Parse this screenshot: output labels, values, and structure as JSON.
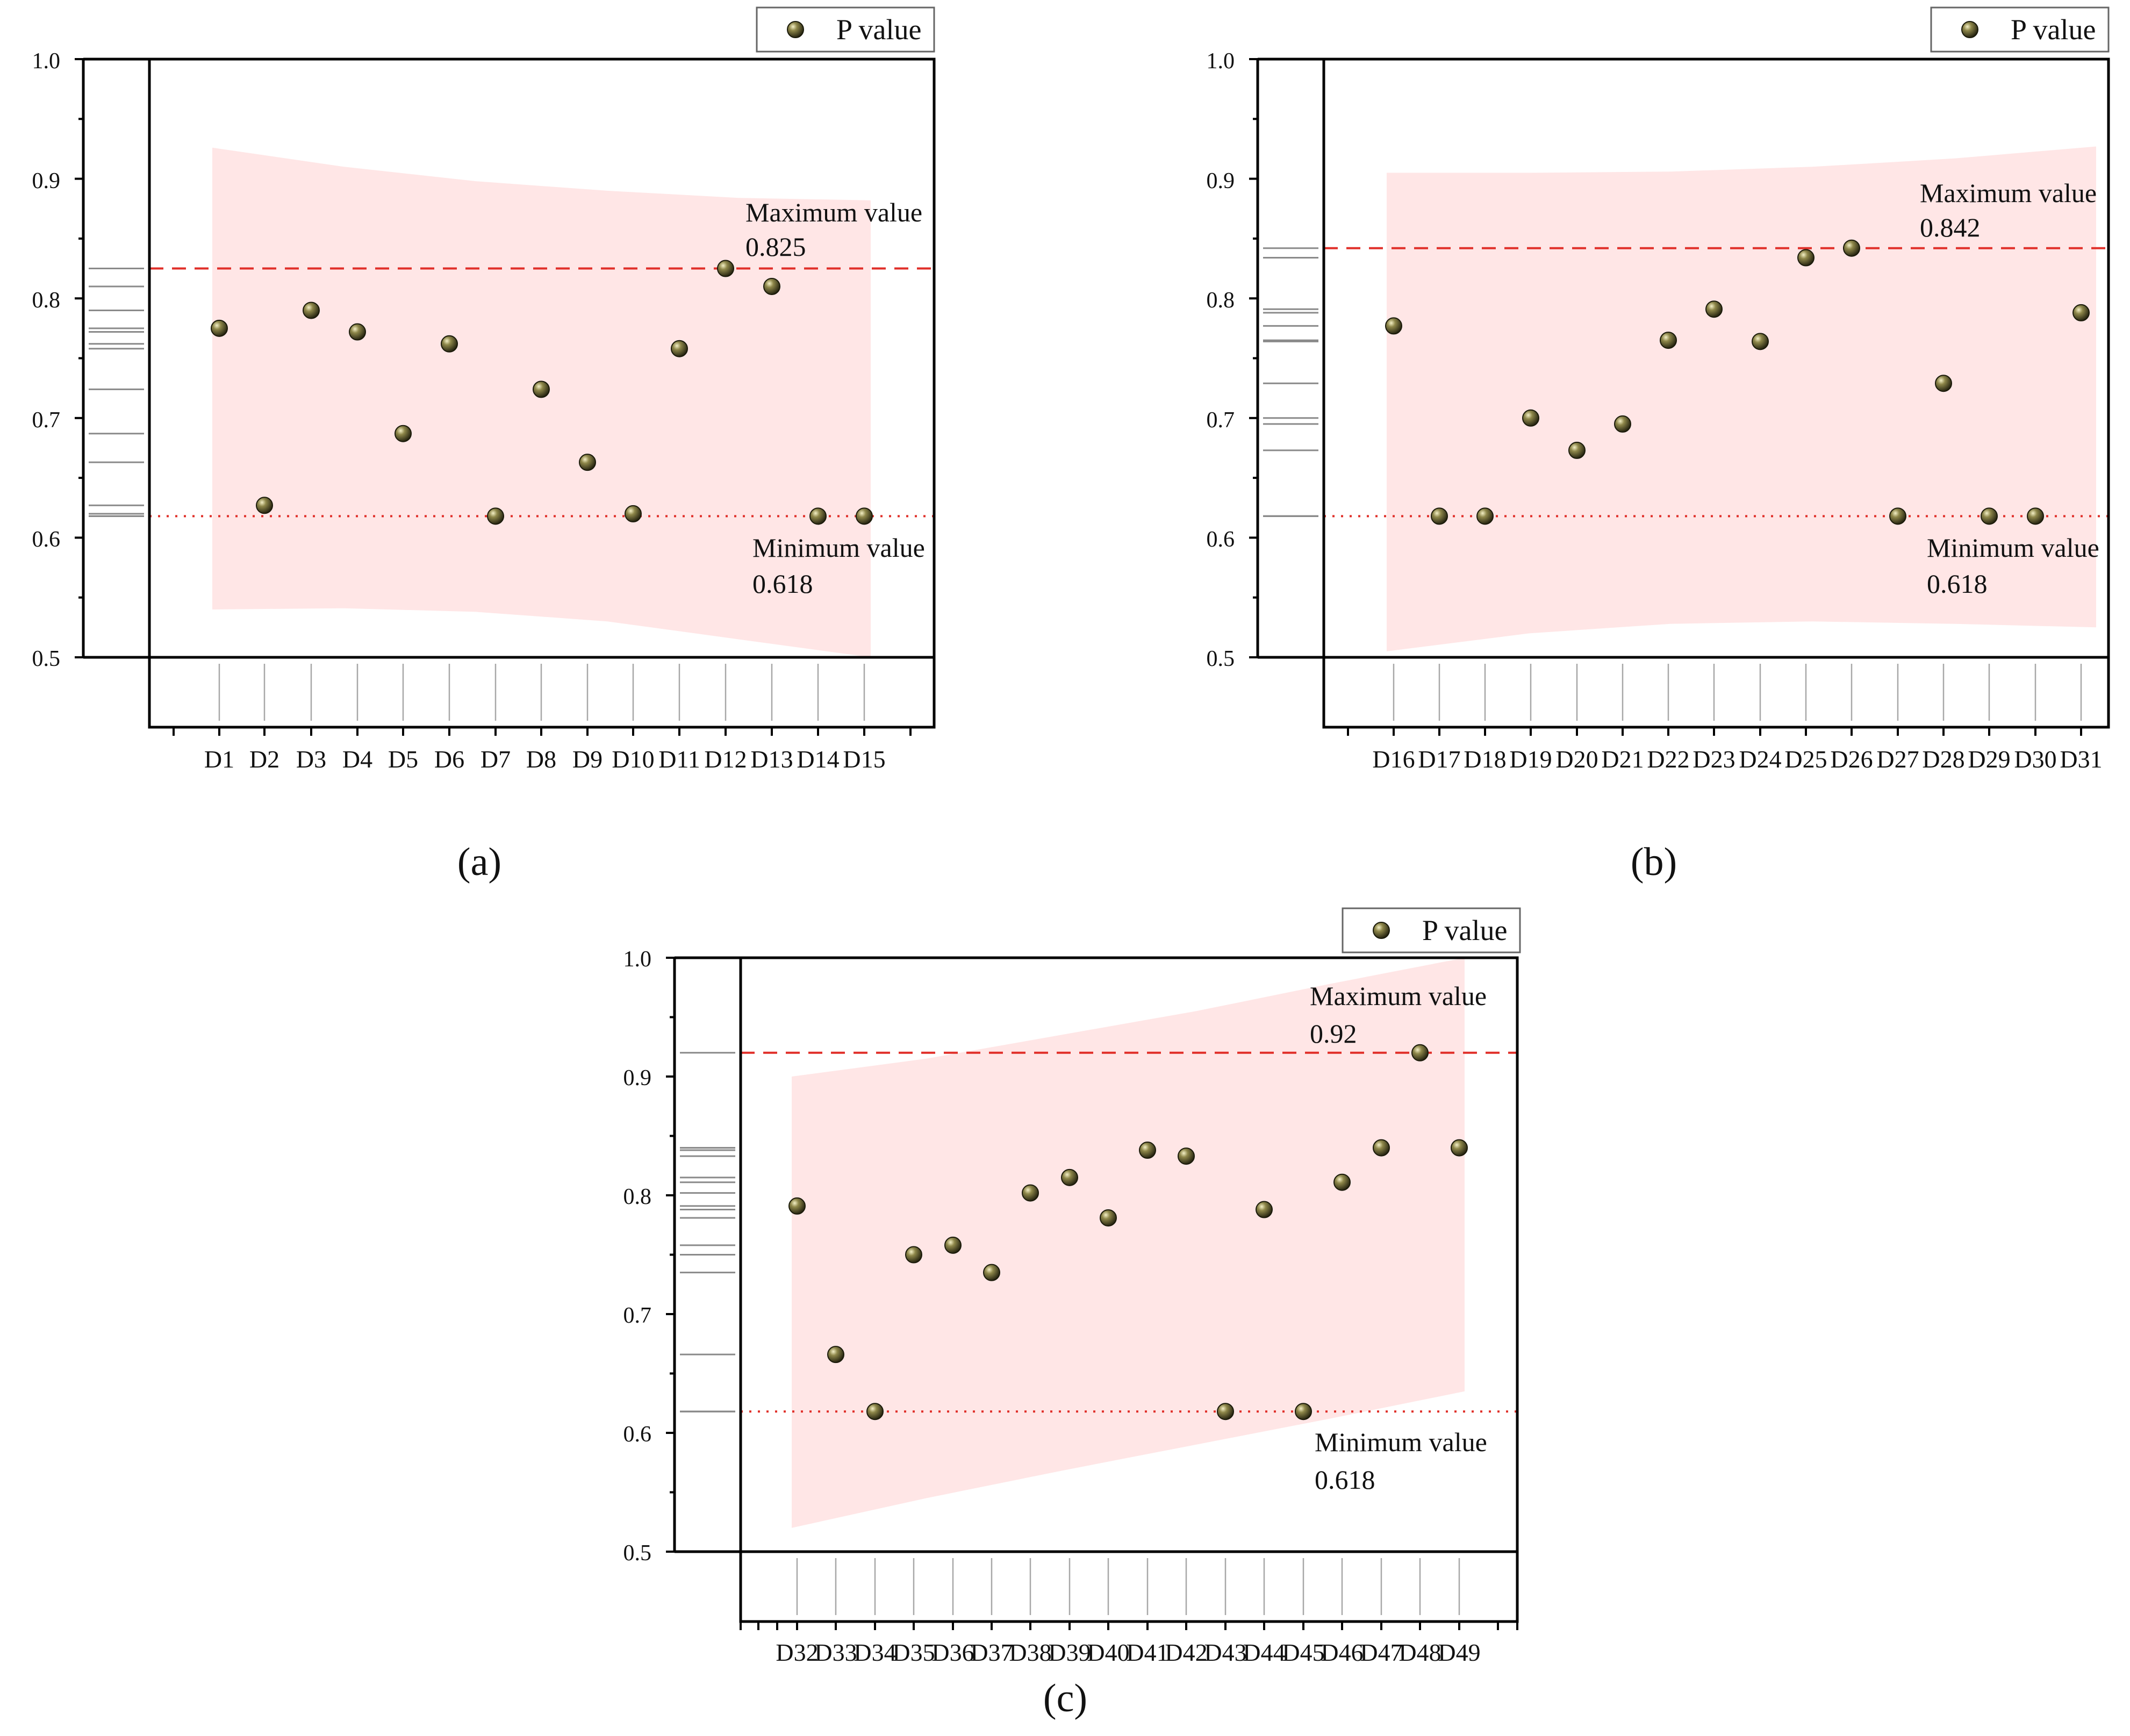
{
  "figure": {
    "panel_labels": [
      "(a)",
      "(b)",
      "(c)"
    ]
  },
  "colors": {
    "band": "#ffe6e6",
    "reference_line": "#e0302a",
    "point_fill": "#6b6536",
    "axis": "#000000",
    "rug": "#8a8a8a"
  },
  "chart_data": [
    {
      "type": "scatter",
      "panel": "(a)",
      "legend": "P value",
      "ylim": [
        0.5,
        1.0
      ],
      "yticks": [
        "0.5",
        "0.6",
        "0.7",
        "0.8",
        "0.9",
        "1.0"
      ],
      "categories": [
        "D1",
        "D2",
        "D3",
        "D4",
        "D5",
        "D6",
        "D7",
        "D8",
        "D9",
        "D10",
        "D11",
        "D12",
        "D13",
        "D14",
        "D15"
      ],
      "values": [
        0.775,
        0.627,
        0.79,
        0.772,
        0.687,
        0.762,
        0.618,
        0.724,
        0.663,
        0.62,
        0.758,
        0.825,
        0.81,
        0.618,
        0.618
      ],
      "band_upper": [
        0.926,
        0.91,
        0.898,
        0.89,
        0.884,
        0.882
      ],
      "band_lower": [
        0.54,
        0.541,
        0.538,
        0.53,
        0.515,
        0.5
      ],
      "max_label": "Maximum value",
      "max_value_text": "0.825",
      "max_value": 0.825,
      "min_label": "Minimum value",
      "min_value_text": "0.618",
      "min_value": 0.618
    },
    {
      "type": "scatter",
      "panel": "(b)",
      "legend": "P value",
      "ylim": [
        0.5,
        1.0
      ],
      "yticks": [
        "0.5",
        "0.6",
        "0.7",
        "0.8",
        "0.9",
        "1.0"
      ],
      "categories": [
        "D16",
        "D17",
        "D18",
        "D19",
        "D20",
        "D21",
        "D22",
        "D23",
        "D24",
        "D25",
        "D26",
        "D27",
        "D28",
        "D29",
        "D30",
        "D31"
      ],
      "values": [
        0.777,
        0.618,
        0.618,
        0.7,
        0.673,
        0.695,
        0.765,
        0.791,
        0.764,
        0.834,
        0.842,
        0.618,
        0.729,
        0.618,
        0.618,
        0.788
      ],
      "band_upper": [
        0.905,
        0.905,
        0.906,
        0.91,
        0.917,
        0.927
      ],
      "band_lower": [
        0.505,
        0.52,
        0.528,
        0.53,
        0.528,
        0.525
      ],
      "max_label": "Maximum value",
      "max_value_text": "0.842",
      "max_value": 0.842,
      "min_label": "Minimum value",
      "min_value_text": "0.618",
      "min_value": 0.618
    },
    {
      "type": "scatter",
      "panel": "(c)",
      "legend": "P value",
      "ylim": [
        0.5,
        1.0
      ],
      "yticks": [
        "0.5",
        "0.6",
        "0.7",
        "0.8",
        "0.9",
        "1.0"
      ],
      "categories": [
        "D32",
        "D33",
        "D34",
        "D35",
        "D36",
        "D37",
        "D38",
        "D39",
        "D40",
        "D41",
        "D42",
        "D43",
        "D44",
        "D45",
        "D46",
        "D47",
        "D48",
        "D49"
      ],
      "values": [
        0.791,
        0.666,
        0.618,
        0.75,
        0.758,
        0.735,
        0.802,
        0.815,
        0.781,
        0.838,
        0.833,
        0.618,
        0.788,
        0.618,
        0.811,
        0.84,
        0.92,
        0.84
      ],
      "band_upper": [
        0.9,
        0.915,
        0.935,
        0.955,
        0.978,
        1.0
      ],
      "band_lower": [
        0.52,
        0.545,
        0.568,
        0.59,
        0.612,
        0.635
      ],
      "max_label": "Maximum value",
      "max_value_text": "0.92",
      "max_value": 0.92,
      "min_label": "Minimum value",
      "min_value_text": "0.618",
      "min_value": 0.618
    }
  ]
}
